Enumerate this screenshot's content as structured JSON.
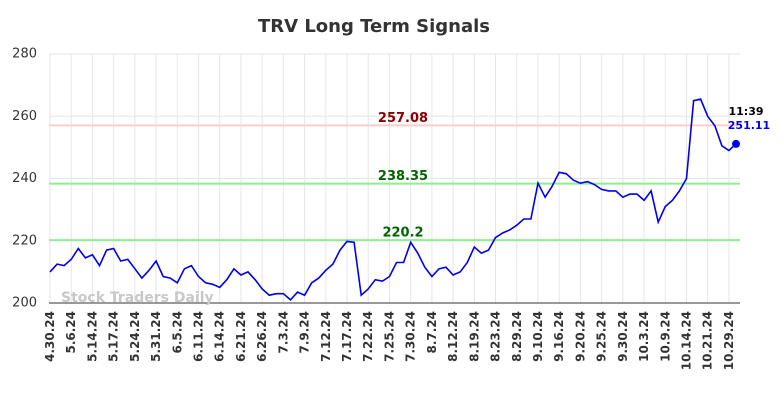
{
  "chart_data": {
    "type": "line",
    "title": "TRV Long Term Signals",
    "categories": [
      "4.30.24",
      null,
      null,
      "5.6.24",
      null,
      null,
      "5.14.24",
      null,
      null,
      "5.17.24",
      null,
      null,
      "5.24.24",
      null,
      null,
      "5.31.24",
      null,
      null,
      "6.5.24",
      null,
      null,
      "6.11.24",
      null,
      null,
      "6.14.24",
      null,
      null,
      "6.21.24",
      null,
      null,
      "6.26.24",
      null,
      null,
      "7.3.24",
      null,
      null,
      "7.9.24",
      null,
      null,
      "7.12.24",
      null,
      null,
      "7.17.24",
      null,
      null,
      "7.22.24",
      null,
      null,
      "7.25.24",
      null,
      null,
      "7.30.24",
      null,
      null,
      "8.7.24",
      null,
      null,
      "8.12.24",
      null,
      null,
      "8.19.24",
      null,
      null,
      "8.23.24",
      null,
      null,
      "8.29.24",
      null,
      null,
      "9.10.24",
      null,
      null,
      "9.16.24",
      null,
      null,
      "9.20.24",
      null,
      null,
      "9.25.24",
      null,
      null,
      "9.30.24",
      null,
      null,
      "10.3.24",
      null,
      null,
      "10.9.24",
      null,
      null,
      "10.14.24",
      null,
      null,
      "10.21.24",
      null,
      null,
      "10.29.24",
      null
    ],
    "series": [
      {
        "color": "#0000ee",
        "values": [
          210,
          212.5,
          212,
          214,
          217.5,
          214.5,
          215.5,
          212,
          217,
          217.5,
          213.5,
          214,
          211,
          208,
          210.5,
          213.5,
          208.5,
          208,
          206.5,
          211,
          212,
          208.5,
          206.5,
          206,
          205,
          207.5,
          211,
          209,
          210,
          207.5,
          204.5,
          202.5,
          203,
          203,
          201,
          203.5,
          202.5,
          206.5,
          208,
          210.5,
          212.5,
          217,
          219.8,
          219.5,
          202.5,
          204.5,
          207.5,
          207,
          208.5,
          213,
          213,
          219.5,
          216,
          211.5,
          208.5,
          211,
          211.5,
          209,
          210,
          213,
          218,
          216,
          217,
          221,
          222.5,
          223.5,
          225,
          227,
          227,
          238.5,
          234,
          237.5,
          242,
          241.5,
          239.5,
          238.5,
          239,
          238,
          236.5,
          236,
          236,
          234,
          235,
          235,
          233,
          236,
          226,
          231,
          233,
          236,
          240,
          265,
          265.5,
          260,
          257,
          250.5,
          249,
          251.11
        ]
      }
    ],
    "hlines": [
      {
        "value": 257.08,
        "color": "#ffcccc",
        "label_color": "#8b0000"
      },
      {
        "value": 238.35,
        "color": "#90ee90",
        "label_color": "#006400"
      },
      {
        "value": 220.2,
        "color": "#90ee90",
        "label_color": "#006400"
      }
    ],
    "last_time": "11:39",
    "watermark": "Stock Traders Daily",
    "ylim": [
      200,
      280
    ],
    "yticks": [
      200,
      220,
      240,
      260,
      280
    ],
    "grid": true
  }
}
